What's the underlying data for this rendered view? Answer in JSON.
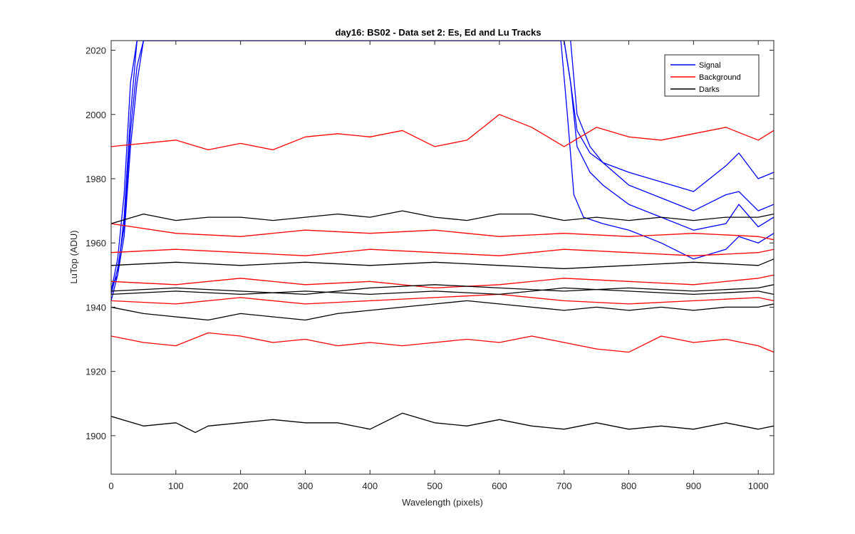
{
  "chart_data": {
    "type": "line",
    "title": "day16: BS02 - Data set 2: Es, Ed and Lu Tracks",
    "xlabel": "Wavelength (pixels)",
    "ylabel": "LuTop (ADU)",
    "xlim": [
      0,
      1024
    ],
    "ylim": [
      1888,
      2023
    ],
    "xticks": [
      0,
      100,
      200,
      300,
      400,
      500,
      600,
      700,
      800,
      900,
      1000
    ],
    "yticks": [
      1900,
      1920,
      1940,
      1960,
      1980,
      2000,
      2020
    ],
    "grid": false,
    "legend": {
      "position": "top-right",
      "entries": [
        {
          "name": "Signal",
          "color": "#0000ff"
        },
        {
          "name": "Background",
          "color": "#ff0000"
        },
        {
          "name": "Darks",
          "color": "#000000"
        }
      ]
    },
    "groups": [
      {
        "name": "Signal",
        "color": "#0000ff",
        "series": [
          {
            "x": [
              0,
              10,
              20,
              30,
              40,
              50,
              60,
              700,
              710,
              720,
              740,
              760,
              800,
              850,
              900,
              950,
              970,
              1000,
              1024
            ],
            "y": [
              1945,
              1955,
              1975,
              2010,
              2023,
              2023,
              2023,
              2023,
              2010,
              1995,
              1988,
              1985,
              1982,
              1979,
              1976,
              1984,
              1988,
              1980,
              1982
            ]
          },
          {
            "x": [
              0,
              10,
              20,
              30,
              40,
              50,
              60,
              710,
              720,
              740,
              760,
              800,
              850,
              900,
              950,
              970,
              1000,
              1024
            ],
            "y": [
              1942,
              1950,
              1968,
              2000,
              2023,
              2023,
              2023,
              2023,
              2000,
              1990,
              1985,
              1978,
              1974,
              1970,
              1975,
              1976,
              1970,
              1972
            ]
          },
          {
            "x": [
              0,
              10,
              20,
              30,
              40,
              50,
              700,
              710,
              720,
              740,
              760,
              800,
              850,
              900,
              950,
              970,
              1000,
              1024
            ],
            "y": [
              1944,
              1952,
              1965,
              1995,
              2015,
              2023,
              2023,
              2010,
              1990,
              1982,
              1978,
              1972,
              1968,
              1964,
              1966,
              1972,
              1965,
              1968
            ]
          },
          {
            "x": [
              0,
              10,
              20,
              30,
              40,
              50,
              695,
              705,
              715,
              730,
              760,
              800,
              850,
              900,
              950,
              970,
              1000,
              1024
            ],
            "y": [
              1946,
              1950,
              1962,
              1990,
              2010,
              2023,
              2023,
              2000,
              1975,
              1968,
              1966,
              1964,
              1960,
              1955,
              1958,
              1962,
              1960,
              1963
            ]
          }
        ]
      },
      {
        "name": "Background",
        "color": "#ff0000",
        "series": [
          {
            "x": [
              0,
              100,
              150,
              200,
              250,
              300,
              350,
              400,
              450,
              500,
              550,
              600,
              650,
              700,
              750,
              800,
              850,
              900,
              950,
              1000,
              1024
            ],
            "y": [
              1990,
              1992,
              1989,
              1991,
              1989,
              1993,
              1994,
              1993,
              1995,
              1990,
              1992,
              2000,
              1996,
              1990,
              1996,
              1993,
              1992,
              1994,
              1996,
              1992,
              1995
            ]
          },
          {
            "x": [
              0,
              100,
              200,
              300,
              400,
              500,
              600,
              700,
              800,
              900,
              1000,
              1024
            ],
            "y": [
              1966,
              1963,
              1962,
              1964,
              1963,
              1964,
              1962,
              1963,
              1962,
              1963,
              1962,
              1961
            ]
          },
          {
            "x": [
              0,
              100,
              200,
              300,
              400,
              500,
              600,
              700,
              800,
              900,
              1000,
              1024
            ],
            "y": [
              1957,
              1958,
              1957,
              1956,
              1958,
              1957,
              1956,
              1958,
              1957,
              1956,
              1957,
              1958
            ]
          },
          {
            "x": [
              0,
              100,
              200,
              300,
              400,
              500,
              600,
              700,
              800,
              900,
              1000,
              1024
            ],
            "y": [
              1948,
              1947,
              1949,
              1947,
              1948,
              1946,
              1947,
              1949,
              1948,
              1947,
              1949,
              1950
            ]
          },
          {
            "x": [
              0,
              100,
              200,
              300,
              400,
              500,
              600,
              700,
              800,
              900,
              1000,
              1024
            ],
            "y": [
              1942,
              1941,
              1943,
              1941,
              1942,
              1943,
              1944,
              1942,
              1941,
              1942,
              1943,
              1942
            ]
          },
          {
            "x": [
              0,
              50,
              100,
              150,
              200,
              250,
              300,
              350,
              400,
              450,
              500,
              550,
              600,
              650,
              700,
              750,
              800,
              850,
              900,
              950,
              1000,
              1024
            ],
            "y": [
              1931,
              1929,
              1928,
              1932,
              1931,
              1929,
              1930,
              1928,
              1929,
              1928,
              1929,
              1930,
              1929,
              1931,
              1929,
              1927,
              1926,
              1931,
              1929,
              1930,
              1928,
              1926
            ]
          }
        ]
      },
      {
        "name": "Darks",
        "color": "#000000",
        "series": [
          {
            "x": [
              0,
              50,
              100,
              150,
              200,
              250,
              300,
              350,
              400,
              450,
              500,
              550,
              600,
              650,
              700,
              750,
              800,
              850,
              900,
              950,
              1000,
              1024
            ],
            "y": [
              1966,
              1969,
              1967,
              1968,
              1968,
              1967,
              1968,
              1969,
              1968,
              1970,
              1968,
              1967,
              1969,
              1969,
              1967,
              1968,
              1967,
              1968,
              1967,
              1968,
              1968,
              1969
            ]
          },
          {
            "x": [
              0,
              100,
              200,
              300,
              400,
              500,
              600,
              700,
              800,
              900,
              1000,
              1024
            ],
            "y": [
              1953,
              1954,
              1953,
              1954,
              1953,
              1954,
              1953,
              1952,
              1953,
              1954,
              1953,
              1955
            ]
          },
          {
            "x": [
              0,
              100,
              200,
              300,
              400,
              500,
              600,
              700,
              800,
              900,
              1000,
              1024
            ],
            "y": [
              1945,
              1946,
              1945,
              1944,
              1946,
              1947,
              1946,
              1945,
              1946,
              1945,
              1946,
              1947
            ]
          },
          {
            "x": [
              0,
              100,
              200,
              300,
              400,
              500,
              600,
              700,
              800,
              900,
              1000,
              1024
            ],
            "y": [
              1944,
              1945,
              1944,
              1945,
              1944,
              1945,
              1944,
              1946,
              1945,
              1944,
              1945,
              1944
            ]
          },
          {
            "x": [
              0,
              50,
              100,
              150,
              200,
              250,
              300,
              350,
              400,
              450,
              500,
              550,
              600,
              650,
              700,
              750,
              800,
              850,
              900,
              950,
              1000,
              1024
            ],
            "y": [
              1940,
              1938,
              1937,
              1936,
              1938,
              1937,
              1936,
              1938,
              1939,
              1940,
              1941,
              1942,
              1941,
              1940,
              1939,
              1940,
              1939,
              1940,
              1939,
              1940,
              1940,
              1941
            ]
          },
          {
            "x": [
              0,
              50,
              100,
              130,
              150,
              200,
              250,
              300,
              350,
              400,
              450,
              500,
              550,
              600,
              650,
              700,
              750,
              800,
              850,
              900,
              950,
              1000,
              1024
            ],
            "y": [
              1906,
              1903,
              1904,
              1901,
              1903,
              1904,
              1905,
              1904,
              1904,
              1902,
              1907,
              1904,
              1903,
              1905,
              1903,
              1902,
              1904,
              1902,
              1903,
              1902,
              1904,
              1902,
              1903
            ]
          }
        ]
      }
    ]
  }
}
